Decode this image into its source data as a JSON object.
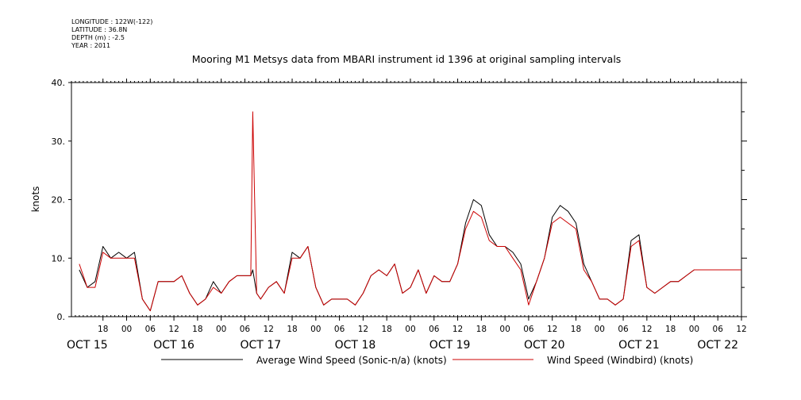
{
  "header": {
    "longitude": "LONGITUDE : 122W(-122)",
    "latitude": "LATITUDE : 36.8N",
    "depth": "DEPTH (m) : -2.5",
    "year": "YEAR : 2011"
  },
  "chart_data": {
    "type": "line",
    "title": "Mooring M1 Metsys data from MBARI instrument id 1396 at original sampling intervals",
    "ylabel": "knots",
    "xlabel": "",
    "ylim": [
      0,
      40
    ],
    "yticks": [
      0,
      10,
      20,
      30,
      40
    ],
    "ytick_labels": [
      "0.",
      "10.",
      "20.",
      "30.",
      "40."
    ],
    "x_units": "hours since OCT 15 00:00 (2011)",
    "xlim": [
      -14,
      156
    ],
    "hour_ticks": [
      {
        "t": -6,
        "label": "18"
      },
      {
        "t": 0,
        "label": "00"
      },
      {
        "t": 6,
        "label": "06"
      },
      {
        "t": 12,
        "label": "12"
      },
      {
        "t": 18,
        "label": "18"
      },
      {
        "t": 24,
        "label": "00"
      },
      {
        "t": 30,
        "label": "06"
      },
      {
        "t": 36,
        "label": "12"
      },
      {
        "t": 42,
        "label": "18"
      },
      {
        "t": 48,
        "label": "00"
      },
      {
        "t": 54,
        "label": "06"
      },
      {
        "t": 60,
        "label": "12"
      },
      {
        "t": 66,
        "label": "18"
      },
      {
        "t": 72,
        "label": "00"
      },
      {
        "t": 78,
        "label": "06"
      },
      {
        "t": 84,
        "label": "12"
      },
      {
        "t": 90,
        "label": "18"
      },
      {
        "t": 96,
        "label": "00"
      },
      {
        "t": 102,
        "label": "06"
      },
      {
        "t": 108,
        "label": "12"
      },
      {
        "t": 114,
        "label": "18"
      },
      {
        "t": 120,
        "label": "00"
      },
      {
        "t": 126,
        "label": "06"
      },
      {
        "t": 132,
        "label": "12"
      },
      {
        "t": 138,
        "label": "18"
      },
      {
        "t": 144,
        "label": "00"
      },
      {
        "t": 150,
        "label": "06"
      },
      {
        "t": 156,
        "label": "12"
      }
    ],
    "day_labels": [
      {
        "t": -10,
        "label": "OCT 15"
      },
      {
        "t": 12,
        "label": "OCT 16"
      },
      {
        "t": 34,
        "label": "OCT 17"
      },
      {
        "t": 58,
        "label": "OCT 18"
      },
      {
        "t": 82,
        "label": "OCT 19"
      },
      {
        "t": 106,
        "label": "OCT 20"
      },
      {
        "t": 130,
        "label": "OCT 21"
      },
      {
        "t": 150,
        "label": "OCT 22"
      }
    ],
    "series": [
      {
        "name": "Average Wind Speed (Sonic-n/a) (knots)",
        "color": "#000000",
        "x": [
          -12,
          -10,
          -8,
          -6,
          -4,
          -2,
          0,
          2,
          4,
          6,
          8,
          10,
          12,
          14,
          16,
          18,
          20,
          22,
          24,
          26,
          28,
          30,
          31.5,
          32,
          33,
          34,
          36,
          38,
          40,
          42,
          44,
          46,
          48,
          50,
          52,
          54,
          56,
          58,
          60,
          62,
          64,
          66,
          68,
          70,
          72,
          74,
          76,
          78,
          80,
          82,
          84,
          86,
          88,
          90,
          92,
          94,
          96,
          98,
          100,
          102,
          104,
          106,
          108,
          110,
          112,
          114,
          116,
          118,
          120,
          122,
          124,
          126,
          128,
          130,
          132,
          134,
          136,
          138,
          140,
          142,
          144,
          146,
          148,
          150,
          152,
          154,
          156
        ],
        "y": [
          8,
          5,
          6,
          12,
          10,
          11,
          10,
          11,
          3,
          1,
          6,
          6,
          6,
          7,
          4,
          2,
          3,
          6,
          4,
          6,
          7,
          7,
          7,
          8,
          4,
          3,
          5,
          6,
          4,
          11,
          10,
          12,
          5,
          2,
          3,
          3,
          3,
          2,
          4,
          7,
          8,
          7,
          9,
          4,
          5,
          8,
          4,
          7,
          6,
          6,
          9,
          16,
          20,
          19,
          14,
          12,
          12,
          11,
          9,
          3,
          6,
          10,
          17,
          19,
          18,
          16,
          9,
          6,
          3,
          3,
          2,
          3,
          13,
          14,
          5,
          4,
          5,
          6,
          6,
          7,
          8,
          8,
          8,
          8,
          8,
          8,
          8
        ]
      },
      {
        "name": "Wind Speed (Windbird) (knots)",
        "color": "#cc0000",
        "x": [
          -12,
          -10,
          -8,
          -6,
          -4,
          -2,
          0,
          2,
          4,
          6,
          8,
          10,
          12,
          14,
          16,
          18,
          20,
          22,
          24,
          26,
          28,
          30,
          31.5,
          32,
          33,
          34,
          36,
          38,
          40,
          42,
          44,
          46,
          48,
          50,
          52,
          54,
          56,
          58,
          60,
          62,
          64,
          66,
          68,
          70,
          72,
          74,
          76,
          78,
          80,
          82,
          84,
          86,
          88,
          90,
          92,
          94,
          96,
          98,
          100,
          102,
          104,
          106,
          108,
          110,
          112,
          114,
          116,
          118,
          120,
          122,
          124,
          126,
          128,
          130,
          132,
          134,
          136,
          138,
          140,
          142,
          144,
          146,
          148,
          150,
          152,
          154,
          156
        ],
        "y": [
          9,
          5,
          5,
          11,
          10,
          10,
          10,
          10,
          3,
          1,
          6,
          6,
          6,
          7,
          4,
          2,
          3,
          5,
          4,
          6,
          7,
          7,
          7,
          35,
          4,
          3,
          5,
          6,
          4,
          10,
          10,
          12,
          5,
          2,
          3,
          3,
          3,
          2,
          4,
          7,
          8,
          7,
          9,
          4,
          5,
          8,
          4,
          7,
          6,
          6,
          9,
          15,
          18,
          17,
          13,
          12,
          12,
          10,
          8,
          2,
          6,
          10,
          16,
          17,
          16,
          15,
          8,
          6,
          3,
          3,
          2,
          3,
          12,
          13,
          5,
          4,
          5,
          6,
          6,
          7,
          8,
          8,
          8,
          8,
          8,
          8,
          8
        ]
      }
    ],
    "legend": "bottom",
    "grid": false
  }
}
